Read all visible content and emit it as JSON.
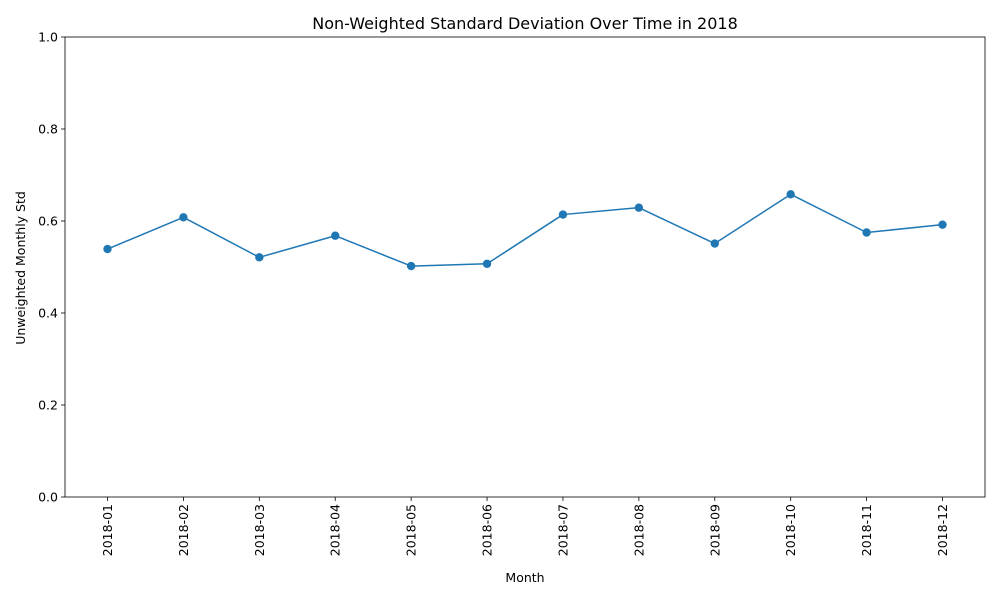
{
  "chart_data": {
    "type": "line",
    "title": "Non-Weighted Standard Deviation Over Time in 2018",
    "xlabel": "Month",
    "ylabel": "Unweighted Monthly Std",
    "categories": [
      "2018-01",
      "2018-02",
      "2018-03",
      "2018-04",
      "2018-05",
      "2018-06",
      "2018-07",
      "2018-08",
      "2018-09",
      "2018-10",
      "2018-11",
      "2018-12"
    ],
    "series": [
      {
        "values": [
          0.539,
          0.608,
          0.521,
          0.568,
          0.502,
          0.507,
          0.614,
          0.629,
          0.551,
          0.658,
          0.575,
          0.592
        ],
        "color": "#1f77b4",
        "marker": "circle"
      }
    ],
    "ylim": [
      0,
      1.0
    ],
    "yticks": [
      "0.0",
      "0.2",
      "0.4",
      "0.6",
      "0.8",
      "1.0"
    ],
    "ytick_values": [
      0,
      0.2,
      0.4,
      0.6,
      0.8,
      1.0
    ],
    "grid": false,
    "legend": "none",
    "xtick_rotation": "vertical"
  }
}
